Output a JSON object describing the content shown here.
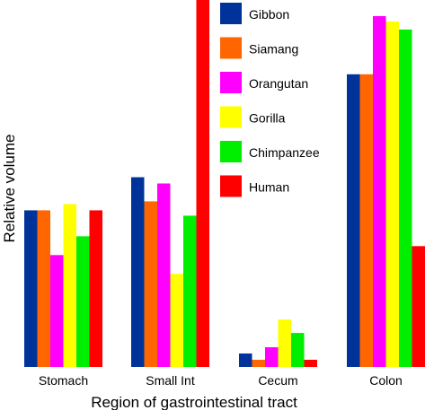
{
  "chart_data": {
    "type": "bar",
    "title": "",
    "xlabel": "Region of gastrointestinal tract",
    "ylabel": "Relative volume",
    "ylim": [
      0,
      410
    ],
    "grid": false,
    "legend_placement": "top-right",
    "categories": [
      "Stomach",
      "Small Int",
      "Cecum",
      "Colon"
    ],
    "series": [
      {
        "name": "Gibbon",
        "color": "#003399",
        "values": [
          175,
          212,
          15,
          327
        ]
      },
      {
        "name": "Siamang",
        "color": "#ff6600",
        "values": [
          175,
          185,
          8,
          327
        ]
      },
      {
        "name": "Orangutan",
        "color": "#ff00ff",
        "values": [
          125,
          205,
          22,
          392
        ]
      },
      {
        "name": "Gorilla",
        "color": "#ffff00",
        "values": [
          182,
          104,
          53,
          386
        ]
      },
      {
        "name": "Chimpanzee",
        "color": "#00ee00",
        "values": [
          146,
          169,
          38,
          377
        ]
      },
      {
        "name": "Human",
        "color": "#ff0000",
        "values": [
          175,
          410,
          8,
          135
        ]
      }
    ]
  }
}
